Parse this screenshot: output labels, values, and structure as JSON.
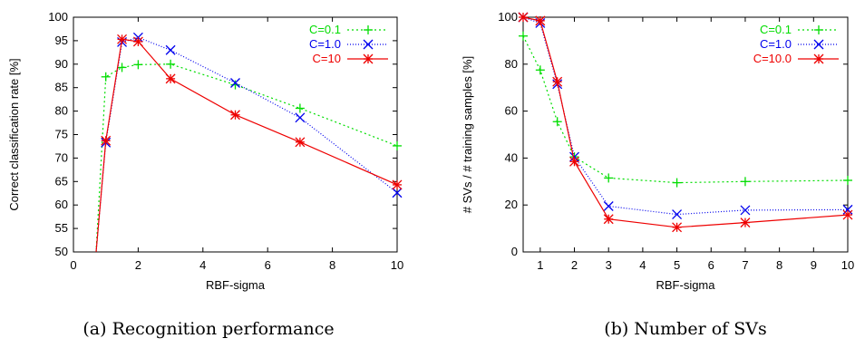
{
  "chart_data": [
    {
      "type": "line",
      "caption": "(a) Recognition performance",
      "xlabel": "RBF-sigma",
      "ylabel": "Correct classification rate [%]",
      "xlim": [
        0,
        10
      ],
      "ylim": [
        50,
        100
      ],
      "xticks": [
        0,
        2,
        4,
        6,
        8,
        10
      ],
      "yticks": [
        50,
        55,
        60,
        65,
        70,
        75,
        80,
        85,
        90,
        95,
        100
      ],
      "legend_position": "top-right",
      "series": [
        {
          "name": "C=0.1",
          "color": "#00dd00",
          "marker": "plus",
          "dash": "2,3",
          "x": [
            0.7,
            1,
            1.5,
            2,
            3,
            5,
            7,
            10
          ],
          "y": [
            50,
            87.3,
            89.3,
            89.9,
            90,
            85.6,
            80.6,
            72.6
          ]
        },
        {
          "name": "C=1.0",
          "color": "#0000ee",
          "marker": "cross",
          "dash": "1,2",
          "x": [
            0.7,
            1,
            1.5,
            2,
            3,
            5,
            7,
            10
          ],
          "y": [
            50,
            73.3,
            94.7,
            95.7,
            93,
            86,
            78.6,
            62.6
          ]
        },
        {
          "name": "C=10",
          "color": "#ee0000",
          "marker": "star",
          "dash": "",
          "x": [
            0.7,
            1,
            1.5,
            2,
            3,
            5,
            7,
            10
          ],
          "y": [
            50,
            73.7,
            95.3,
            94.8,
            86.9,
            79.2,
            73.4,
            64.3
          ]
        }
      ]
    },
    {
      "type": "line",
      "caption": "(b) Number of SVs",
      "xlabel": "RBF-sigma",
      "ylabel": "# SVs / # training samples [%]",
      "xlim": [
        0.5,
        10
      ],
      "ylim": [
        0,
        100
      ],
      "xticks": [
        1,
        2,
        3,
        4,
        5,
        6,
        7,
        8,
        9,
        10
      ],
      "yticks": [
        0,
        20,
        40,
        60,
        80,
        100
      ],
      "legend_position": "top-right",
      "series": [
        {
          "name": "C=0.1",
          "color": "#00dd00",
          "marker": "plus",
          "dash": "2,3",
          "x": [
            0.5,
            1,
            1.5,
            2,
            3,
            5,
            7,
            10
          ],
          "y": [
            92,
            77.5,
            55.5,
            40.5,
            31.5,
            29.5,
            30,
            30.5
          ]
        },
        {
          "name": "C=1.0",
          "color": "#0000ee",
          "marker": "cross",
          "dash": "1,2",
          "x": [
            0.5,
            1,
            1.5,
            2,
            3,
            5,
            7,
            10
          ],
          "y": [
            100,
            97.5,
            71.5,
            40.5,
            19.5,
            16,
            17.8,
            18
          ]
        },
        {
          "name": "C=10.0",
          "color": "#ee0000",
          "marker": "star",
          "dash": "",
          "x": [
            0.5,
            1,
            1.5,
            2,
            3,
            5,
            7,
            10
          ],
          "y": [
            100,
            98.5,
            72.5,
            38.5,
            14,
            10.5,
            12.5,
            15.8
          ]
        }
      ]
    }
  ]
}
